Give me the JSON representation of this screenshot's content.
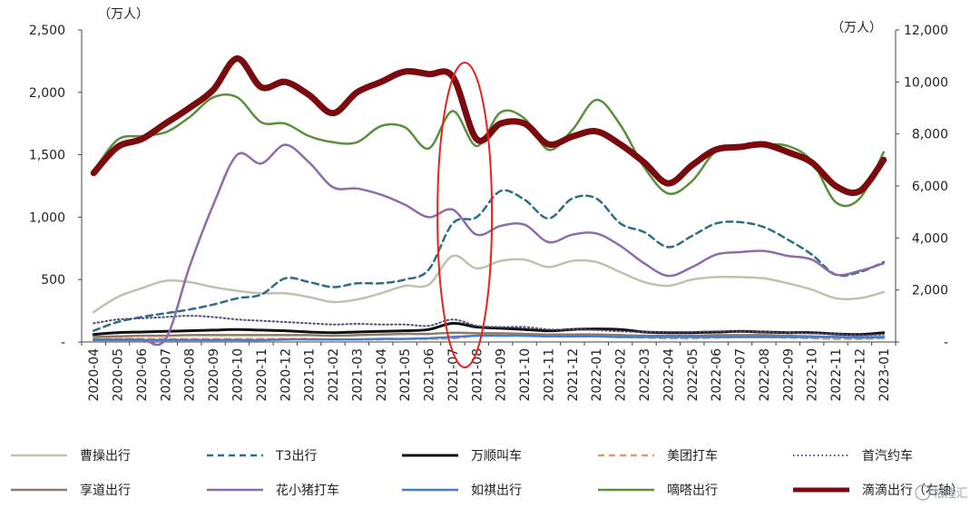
{
  "chart_data": {
    "type": "line",
    "title": "",
    "xlabel": "",
    "y_left_unit": "（万人）",
    "y_right_unit": "（万人）",
    "y_left_ticks": [
      "-",
      "500",
      "1,000",
      "1,500",
      "2,000",
      "2,500"
    ],
    "y_right_ticks": [
      "-",
      "2,000",
      "4,000",
      "6,000",
      "8,000",
      "10,000",
      "12,000"
    ],
    "ylim_left": [
      0,
      2500
    ],
    "ylim_right": [
      0,
      12000
    ],
    "categories": [
      "2020-04",
      "2020-05",
      "2020-06",
      "2020-07",
      "2020-08",
      "2020-09",
      "2020-10",
      "2020-11",
      "2020-12",
      "2021-01",
      "2021-02",
      "2021-03",
      "2021-04",
      "2021-05",
      "2021-06",
      "2021-07",
      "2021-08",
      "2021-09",
      "2021-10",
      "2021-11",
      "2021-12",
      "2022-01",
      "2022-02",
      "2022-03",
      "2022-04",
      "2022-05",
      "2022-06",
      "2022-07",
      "2022-08",
      "2022-09",
      "2022-10",
      "2022-11",
      "2022-12",
      "2023-01"
    ],
    "legend_position": "bottom",
    "highlight": {
      "type": "ellipse",
      "categories": [
        "2021-07",
        "2021-08"
      ],
      "color": "#e8221d"
    },
    "series": [
      {
        "name": "曹操出行",
        "axis": "left",
        "color": "#c1c1ae",
        "style": "solid",
        "width": 2.5,
        "values": [
          240,
          360,
          430,
          490,
          480,
          440,
          410,
          390,
          390,
          360,
          320,
          340,
          390,
          450,
          460,
          690,
          590,
          650,
          660,
          600,
          650,
          640,
          560,
          480,
          450,
          500,
          520,
          520,
          510,
          470,
          420,
          350,
          350,
          400
        ]
      },
      {
        "name": "T3出行",
        "axis": "left",
        "color": "#2e6d86",
        "style": "dash",
        "width": 2.5,
        "values": [
          90,
          160,
          200,
          230,
          260,
          300,
          350,
          380,
          510,
          480,
          440,
          470,
          470,
          500,
          580,
          950,
          1000,
          1210,
          1140,
          990,
          1150,
          1150,
          950,
          880,
          760,
          850,
          950,
          960,
          920,
          820,
          700,
          540,
          560,
          640
        ]
      },
      {
        "name": "万顺叫车",
        "axis": "left",
        "color": "#111111",
        "style": "solid",
        "width": 3,
        "values": [
          60,
          75,
          80,
          85,
          90,
          95,
          100,
          95,
          90,
          80,
          75,
          80,
          85,
          90,
          100,
          150,
          120,
          110,
          100,
          90,
          100,
          105,
          100,
          80,
          75,
          75,
          80,
          85,
          80,
          75,
          75,
          65,
          60,
          75
        ]
      },
      {
        "name": "美团打车",
        "axis": "left",
        "color": "#e59a62",
        "style": "dash",
        "width": 2.5,
        "values": [
          20,
          25,
          25,
          25,
          25,
          25,
          25,
          25,
          25,
          25,
          20,
          20,
          20,
          25,
          25,
          30,
          50,
          60,
          55,
          50,
          50,
          45,
          40,
          35,
          30,
          30,
          35,
          40,
          40,
          35,
          30,
          25,
          25,
          30
        ]
      },
      {
        "name": "首汽约车",
        "axis": "left",
        "color": "#4a4f7d",
        "style": "dot",
        "width": 2,
        "values": [
          150,
          180,
          190,
          200,
          210,
          200,
          180,
          170,
          160,
          150,
          140,
          145,
          140,
          140,
          130,
          180,
          130,
          120,
          120,
          100,
          100,
          95,
          85,
          80,
          80,
          80,
          85,
          85,
          80,
          75,
          70,
          65,
          55,
          60
        ]
      },
      {
        "name": "享道出行",
        "axis": "left",
        "color": "#8b7c6a",
        "style": "solid",
        "width": 2.5,
        "values": [
          40,
          45,
          50,
          50,
          55,
          55,
          55,
          55,
          55,
          55,
          50,
          55,
          60,
          65,
          65,
          75,
          70,
          70,
          65,
          60,
          60,
          60,
          55,
          50,
          50,
          50,
          55,
          55,
          55,
          50,
          45,
          40,
          35,
          40
        ]
      },
      {
        "name": "花小猪打车",
        "axis": "left",
        "color": "#8e6bab",
        "style": "solid",
        "width": 2.5,
        "values": [
          20,
          20,
          20,
          20,
          600,
          1100,
          1500,
          1430,
          1580,
          1440,
          1240,
          1230,
          1180,
          1100,
          1000,
          1060,
          860,
          930,
          940,
          800,
          860,
          870,
          770,
          630,
          530,
          600,
          700,
          720,
          730,
          690,
          660,
          540,
          570,
          630
        ]
      },
      {
        "name": "如祺出行",
        "axis": "left",
        "color": "#4b7cc9",
        "style": "solid",
        "width": 2.5,
        "values": [
          15,
          15,
          15,
          15,
          15,
          15,
          15,
          15,
          20,
          20,
          20,
          20,
          25,
          25,
          30,
          40,
          50,
          50,
          50,
          45,
          45,
          45,
          40,
          40,
          40,
          40,
          40,
          40,
          40,
          40,
          40,
          40,
          40,
          40
        ]
      },
      {
        "name": "嘀嗒出行",
        "axis": "left",
        "color": "#5a8f3c",
        "style": "solid",
        "width": 2.5,
        "values": [
          1370,
          1620,
          1650,
          1680,
          1800,
          1960,
          1960,
          1760,
          1750,
          1650,
          1600,
          1600,
          1730,
          1720,
          1550,
          1850,
          1570,
          1840,
          1790,
          1540,
          1700,
          1940,
          1740,
          1400,
          1190,
          1290,
          1530,
          1560,
          1580,
          1570,
          1450,
          1120,
          1150,
          1520
        ]
      },
      {
        "name": "滴滴出行（右轴）",
        "axis": "right",
        "color": "#7a0a0e",
        "style": "solid",
        "width": 7,
        "values": [
          6500,
          7500,
          7800,
          8400,
          9000,
          9700,
          10900,
          9800,
          10000,
          9500,
          8800,
          9600,
          10000,
          10400,
          10300,
          10200,
          7800,
          8400,
          8400,
          7600,
          7900,
          8100,
          7600,
          6900,
          6100,
          6800,
          7400,
          7500,
          7600,
          7300,
          6900,
          6000,
          5800,
          7000
        ]
      }
    ]
  },
  "watermark": "格隆汇"
}
